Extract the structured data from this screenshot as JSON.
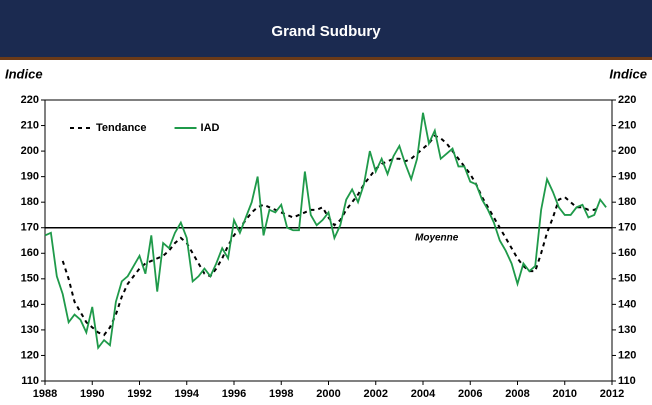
{
  "chart_data": {
    "type": "line",
    "title": "Grand Sudbury",
    "y_label": "Indice",
    "y2_label": "Indice",
    "x": [
      1988,
      1988.25,
      1988.5,
      1988.75,
      1989,
      1989.25,
      1989.5,
      1989.75,
      1990,
      1990.25,
      1990.5,
      1990.75,
      1991,
      1991.25,
      1991.5,
      1991.75,
      1992,
      1992.25,
      1992.5,
      1992.75,
      1993,
      1993.25,
      1993.5,
      1993.75,
      1994,
      1994.25,
      1994.5,
      1994.75,
      1995,
      1995.25,
      1995.5,
      1995.75,
      1996,
      1996.25,
      1996.5,
      1996.75,
      1997,
      1997.25,
      1997.5,
      1997.75,
      1998,
      1998.25,
      1998.5,
      1998.75,
      1999,
      1999.25,
      1999.5,
      1999.75,
      2000,
      2000.25,
      2000.5,
      2000.75,
      2001,
      2001.25,
      2001.5,
      2001.75,
      2002,
      2002.25,
      2002.5,
      2002.75,
      2003,
      2003.25,
      2003.5,
      2003.75,
      2004,
      2004.25,
      2004.5,
      2004.75,
      2005,
      2005.25,
      2005.5,
      2005.75,
      2006,
      2006.25,
      2006.5,
      2006.75,
      2007,
      2007.25,
      2007.5,
      2007.75,
      2008,
      2008.25,
      2008.5,
      2008.75,
      2009,
      2009.25,
      2009.5,
      2009.75,
      2010,
      2010.25,
      2010.5,
      2010.75,
      2011,
      2011.25,
      2011.5,
      2011.75
    ],
    "series": [
      {
        "name": "Tendance",
        "color": "#000000",
        "style": "dashed",
        "values": [
          null,
          null,
          null,
          157,
          150,
          141,
          137,
          133,
          131,
          129,
          128,
          131,
          136,
          143,
          148,
          151,
          154,
          156,
          157,
          158,
          159,
          161,
          164,
          166,
          164,
          160,
          156,
          152,
          151,
          154,
          158,
          163,
          167,
          170,
          173,
          176,
          178,
          179,
          178,
          177,
          176,
          175,
          174,
          175,
          176,
          177,
          177,
          178,
          174,
          171,
          173,
          177,
          180,
          183,
          187,
          190,
          193,
          195,
          196,
          197,
          197,
          196,
          197,
          199,
          201,
          203,
          206,
          205,
          203,
          200,
          197,
          194,
          191,
          187,
          182,
          178,
          174,
          170,
          166,
          162,
          158,
          155,
          153,
          153,
          160,
          168,
          174,
          181,
          182,
          180,
          178,
          178,
          177,
          177,
          178,
          null
        ]
      },
      {
        "name": "IAD",
        "color": "#1f9a4a",
        "style": "solid",
        "values": [
          167,
          168,
          151,
          144,
          133,
          136,
          134,
          129,
          139,
          123,
          126,
          124,
          141,
          149,
          151,
          155,
          159,
          152,
          167,
          145,
          164,
          162,
          168,
          172,
          166,
          149,
          151,
          154,
          151,
          156,
          162,
          158,
          173,
          168,
          174,
          180,
          190,
          167,
          177,
          176,
          179,
          170,
          169,
          169,
          192,
          175,
          171,
          173,
          176,
          166,
          171,
          181,
          185,
          180,
          187,
          200,
          192,
          197,
          191,
          198,
          202,
          195,
          189,
          197,
          215,
          203,
          208,
          197,
          199,
          201,
          194,
          194,
          188,
          187,
          181,
          177,
          172,
          165,
          161,
          156,
          148,
          156,
          153,
          155,
          177,
          189,
          184,
          178,
          175,
          175,
          178,
          179,
          174,
          175,
          181,
          178
        ]
      }
    ],
    "reference_line": {
      "value": 170,
      "label": "Moyenne"
    },
    "xlim": [
      1988,
      2012
    ],
    "xticks": [
      1988,
      1990,
      1992,
      1994,
      1996,
      1998,
      2000,
      2002,
      2004,
      2006,
      2008,
      2010,
      2012
    ],
    "ylim": [
      110,
      220
    ],
    "yticks": [
      110,
      120,
      130,
      140,
      150,
      160,
      170,
      180,
      190,
      200,
      210,
      220
    ],
    "y2lim": [
      110,
      220
    ],
    "y2ticks": [
      110,
      120,
      130,
      140,
      150,
      160,
      170,
      180,
      190,
      200,
      210,
      220
    ],
    "legend": "top-left"
  }
}
